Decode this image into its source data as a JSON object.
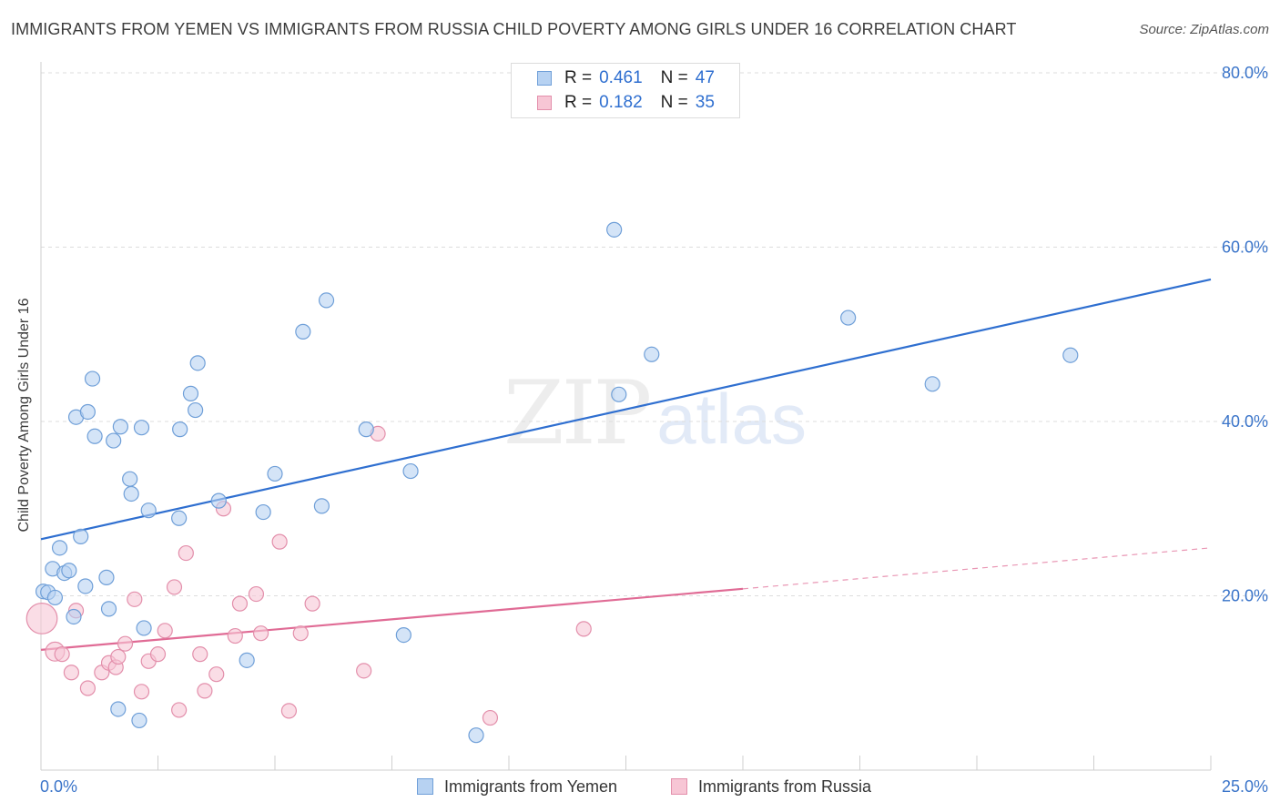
{
  "header": {
    "title": "IMMIGRANTS FROM YEMEN VS IMMIGRANTS FROM RUSSIA CHILD POVERTY AMONG GIRLS UNDER 16 CORRELATION CHART",
    "source": "Source: ZipAtlas.com"
  },
  "watermark": {
    "zip": "ZIP",
    "atlas": "atlas"
  },
  "legend": {
    "yemen": {
      "r_label": "R =",
      "r_value": "0.461",
      "n_label": "N =",
      "n_value": "47"
    },
    "russia": {
      "r_label": "R =",
      "r_value": "0.182",
      "n_label": "N =",
      "n_value": "35"
    }
  },
  "bottom_legend": {
    "yemen": "Immigrants from Yemen",
    "russia": "Immigrants from Russia"
  },
  "colors": {
    "yemen_fill": "#b7d2f2",
    "yemen_stroke": "#6f9fd8",
    "yemen_line": "#2f6fd0",
    "russia_fill": "#f7c6d5",
    "russia_stroke": "#e38fab",
    "russia_line": "#e06b95",
    "tick_label": "#3a74c9",
    "grid": "#dddddd"
  },
  "chart_data": {
    "type": "scatter",
    "title": "IMMIGRANTS FROM YEMEN VS IMMIGRANTS FROM RUSSIA CHILD POVERTY AMONG GIRLS UNDER 16 CORRELATION CHART",
    "xlabel": "",
    "ylabel": "Child Poverty Among Girls Under 16",
    "xlim": [
      0,
      25
    ],
    "ylim": [
      0,
      80
    ],
    "x_tick_labels": [
      "0.0%",
      "25.0%"
    ],
    "y_ticks": [
      20,
      40,
      60,
      80
    ],
    "y_tick_labels": [
      "20.0%",
      "40.0%",
      "60.0%",
      "80.0%"
    ],
    "grid": true,
    "series": [
      {
        "name": "Immigrants from Yemen",
        "r": 0.461,
        "n": 47,
        "trend": {
          "x": [
            0,
            25
          ],
          "y": [
            26.5,
            56.3
          ]
        },
        "points": [
          {
            "x": 0.05,
            "y": 20.5,
            "s": 1
          },
          {
            "x": 0.15,
            "y": 20.4,
            "s": 1
          },
          {
            "x": 0.3,
            "y": 19.8,
            "s": 1
          },
          {
            "x": 0.25,
            "y": 23.1,
            "s": 1
          },
          {
            "x": 0.4,
            "y": 25.5,
            "s": 1
          },
          {
            "x": 0.5,
            "y": 22.6,
            "s": 1
          },
          {
            "x": 0.6,
            "y": 22.9,
            "s": 1
          },
          {
            "x": 0.7,
            "y": 17.6,
            "s": 1
          },
          {
            "x": 0.85,
            "y": 26.8,
            "s": 1
          },
          {
            "x": 0.95,
            "y": 21.1,
            "s": 1
          },
          {
            "x": 0.75,
            "y": 40.5,
            "s": 1
          },
          {
            "x": 1.0,
            "y": 41.1,
            "s": 1
          },
          {
            "x": 1.1,
            "y": 44.9,
            "s": 1
          },
          {
            "x": 1.15,
            "y": 38.3,
            "s": 1
          },
          {
            "x": 1.4,
            "y": 22.1,
            "s": 1
          },
          {
            "x": 1.45,
            "y": 18.5,
            "s": 1
          },
          {
            "x": 1.55,
            "y": 37.8,
            "s": 1
          },
          {
            "x": 1.7,
            "y": 39.4,
            "s": 1
          },
          {
            "x": 1.9,
            "y": 33.4,
            "s": 1
          },
          {
            "x": 1.93,
            "y": 31.7,
            "s": 1
          },
          {
            "x": 2.15,
            "y": 39.3,
            "s": 1
          },
          {
            "x": 2.3,
            "y": 29.8,
            "s": 1
          },
          {
            "x": 2.2,
            "y": 16.3,
            "s": 1
          },
          {
            "x": 1.65,
            "y": 7.0,
            "s": 1
          },
          {
            "x": 2.1,
            "y": 5.7,
            "s": 1
          },
          {
            "x": 2.95,
            "y": 28.9,
            "s": 1
          },
          {
            "x": 2.97,
            "y": 39.1,
            "s": 1
          },
          {
            "x": 3.2,
            "y": 43.2,
            "s": 1
          },
          {
            "x": 3.3,
            "y": 41.3,
            "s": 1
          },
          {
            "x": 3.35,
            "y": 46.7,
            "s": 1
          },
          {
            "x": 3.8,
            "y": 30.9,
            "s": 1
          },
          {
            "x": 4.4,
            "y": 12.6,
            "s": 1
          },
          {
            "x": 4.75,
            "y": 29.6,
            "s": 1
          },
          {
            "x": 5.0,
            "y": 34.0,
            "s": 1
          },
          {
            "x": 5.6,
            "y": 50.3,
            "s": 1
          },
          {
            "x": 6.0,
            "y": 30.3,
            "s": 1
          },
          {
            "x": 6.1,
            "y": 53.9,
            "s": 1
          },
          {
            "x": 6.95,
            "y": 39.1,
            "s": 1
          },
          {
            "x": 7.75,
            "y": 15.5,
            "s": 1
          },
          {
            "x": 7.9,
            "y": 34.3,
            "s": 1
          },
          {
            "x": 9.3,
            "y": 4.0,
            "s": 1
          },
          {
            "x": 12.25,
            "y": 62.0,
            "s": 1
          },
          {
            "x": 12.35,
            "y": 43.1,
            "s": 1
          },
          {
            "x": 13.05,
            "y": 47.7,
            "s": 1
          },
          {
            "x": 17.25,
            "y": 51.9,
            "s": 1
          },
          {
            "x": 19.05,
            "y": 44.3,
            "s": 1
          },
          {
            "x": 22.0,
            "y": 47.6,
            "s": 1
          }
        ]
      },
      {
        "name": "Immigrants from Russia",
        "r": 0.182,
        "n": 35,
        "trend": {
          "x": [
            0,
            15
          ],
          "y": [
            13.8,
            20.8
          ]
        },
        "trend_dashed": {
          "x": [
            15,
            25
          ],
          "y": [
            20.8,
            25.5
          ]
        },
        "points": [
          {
            "x": 0.02,
            "y": 17.4,
            "s": 2.1
          },
          {
            "x": 0.3,
            "y": 13.6,
            "s": 1.3
          },
          {
            "x": 0.45,
            "y": 13.3,
            "s": 1
          },
          {
            "x": 0.75,
            "y": 18.3,
            "s": 1
          },
          {
            "x": 0.65,
            "y": 11.2,
            "s": 1
          },
          {
            "x": 1.0,
            "y": 9.4,
            "s": 1
          },
          {
            "x": 1.3,
            "y": 11.2,
            "s": 1
          },
          {
            "x": 1.45,
            "y": 12.3,
            "s": 1
          },
          {
            "x": 1.6,
            "y": 11.8,
            "s": 1
          },
          {
            "x": 1.65,
            "y": 13.0,
            "s": 1
          },
          {
            "x": 1.8,
            "y": 14.5,
            "s": 1
          },
          {
            "x": 2.0,
            "y": 19.6,
            "s": 1
          },
          {
            "x": 2.15,
            "y": 9.0,
            "s": 1
          },
          {
            "x": 2.3,
            "y": 12.5,
            "s": 1
          },
          {
            "x": 2.5,
            "y": 13.3,
            "s": 1
          },
          {
            "x": 2.65,
            "y": 16.0,
            "s": 1
          },
          {
            "x": 2.85,
            "y": 21.0,
            "s": 1
          },
          {
            "x": 2.95,
            "y": 6.9,
            "s": 1
          },
          {
            "x": 3.1,
            "y": 24.9,
            "s": 1
          },
          {
            "x": 3.4,
            "y": 13.3,
            "s": 1
          },
          {
            "x": 3.5,
            "y": 9.1,
            "s": 1
          },
          {
            "x": 3.75,
            "y": 11.0,
            "s": 1
          },
          {
            "x": 3.9,
            "y": 30.0,
            "s": 1
          },
          {
            "x": 4.15,
            "y": 15.4,
            "s": 1
          },
          {
            "x": 4.25,
            "y": 19.1,
            "s": 1
          },
          {
            "x": 4.6,
            "y": 20.2,
            "s": 1
          },
          {
            "x": 4.7,
            "y": 15.7,
            "s": 1
          },
          {
            "x": 5.1,
            "y": 26.2,
            "s": 1
          },
          {
            "x": 5.3,
            "y": 6.8,
            "s": 1
          },
          {
            "x": 5.55,
            "y": 15.7,
            "s": 1
          },
          {
            "x": 5.8,
            "y": 19.1,
            "s": 1
          },
          {
            "x": 6.9,
            "y": 11.4,
            "s": 1
          },
          {
            "x": 7.2,
            "y": 38.6,
            "s": 1
          },
          {
            "x": 9.6,
            "y": 6.0,
            "s": 1
          },
          {
            "x": 11.6,
            "y": 16.2,
            "s": 1
          }
        ]
      }
    ]
  }
}
